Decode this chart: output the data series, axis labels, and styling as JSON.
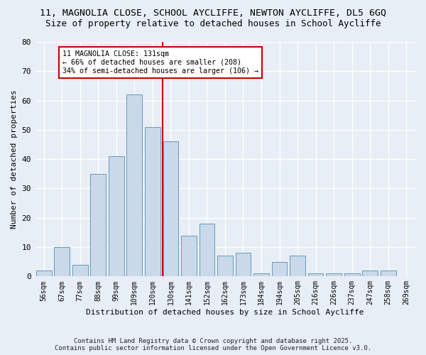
{
  "title1": "11, MAGNOLIA CLOSE, SCHOOL AYCLIFFE, NEWTON AYCLIFFE, DL5 6GQ",
  "title2": "Size of property relative to detached houses in School Aycliffe",
  "xlabel": "Distribution of detached houses by size in School Aycliffe",
  "ylabel": "Number of detached properties",
  "bar_labels": [
    "56sqm",
    "67sqm",
    "77sqm",
    "88sqm",
    "99sqm",
    "109sqm",
    "120sqm",
    "130sqm",
    "141sqm",
    "152sqm",
    "162sqm",
    "173sqm",
    "184sqm",
    "194sqm",
    "205sqm",
    "216sqm",
    "226sqm",
    "237sqm",
    "247sqm",
    "258sqm",
    "269sqm"
  ],
  "bar_values": [
    2,
    10,
    4,
    35,
    41,
    62,
    51,
    46,
    14,
    18,
    7,
    8,
    1,
    5,
    7,
    1,
    1,
    1,
    2,
    2,
    0
  ],
  "bar_color": "#c9d9ea",
  "bar_edge_color": "#6699bb",
  "ylim": [
    0,
    80
  ],
  "yticks": [
    0,
    10,
    20,
    30,
    40,
    50,
    60,
    70,
    80
  ],
  "marker_label": "11 MAGNOLIA CLOSE: 131sqm",
  "annotation_line1": "← 66% of detached houses are smaller (208)",
  "annotation_line2": "34% of semi-detached houses are larger (106) →",
  "annotation_box_color": "#ffffff",
  "annotation_box_edge": "#cc0000",
  "marker_line_color": "#cc0000",
  "bg_color": "#e8eef5",
  "footer1": "Contains HM Land Registry data © Crown copyright and database right 2025.",
  "footer2": "Contains public sector information licensed under the Open Government Licence v3.0.",
  "title_fontsize": 9.5,
  "subtitle_fontsize": 9,
  "grid_color": "#ffffff",
  "marker_bar_index": 7
}
